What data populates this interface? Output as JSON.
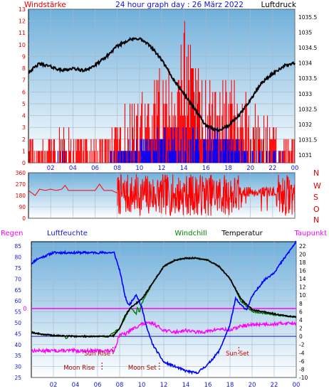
{
  "header": {
    "left_label": "Windstärke",
    "title": "24 hour graph day : 26 März 2022",
    "right_label": "Luftdruck"
  },
  "middle": {
    "compass_labels": [
      "N",
      "W",
      "S",
      "O",
      "N"
    ]
  },
  "bottom_header": {
    "regen": "Regen",
    "luftfeuchte": "Luftfeuchte",
    "windchill": "Windchill",
    "temperatur": "Temperatur",
    "taupunkt": "Taupunkt"
  },
  "annotations": {
    "sun_rise": "Sun Rise",
    "sun_set": "Sun Set",
    "moon_rise": "Moon Rise",
    "moon_set": "Moon Set",
    "regen_zero": "0"
  },
  "colors": {
    "background": "#ffffff",
    "panel_top": "#6fb0dc",
    "panel_bottom": "#ffffff",
    "grid": "#a7b8c8",
    "text_title": "#1515d6",
    "text_red": "#e00000",
    "text_black": "#000000",
    "wind_gust": "#ff0000",
    "wind_avg": "#0000ff",
    "pressure": "#000000",
    "direction": "#ff0000",
    "humidity": "#0000ff",
    "temperature": "#000000",
    "windchill": "#008000",
    "dewpoint": "#ff00ff",
    "rain": "#ff00ff",
    "sun_label": "#d00000",
    "moon_label": "#a00000"
  },
  "chart_data": [
    {
      "id": "wind_pressure",
      "type": "bar+line",
      "x_ticks": [
        "02",
        "04",
        "06",
        "08",
        "10",
        "12",
        "14",
        "16",
        "18",
        "20",
        "22",
        "00"
      ],
      "xlim_hours": [
        0,
        24
      ],
      "y_left": {
        "label": "Windstärke",
        "ticks": [
          "0",
          "1",
          "2",
          "3",
          "4",
          "5",
          "6",
          "7",
          "8",
          "9",
          "10",
          "11",
          "12",
          "13"
        ],
        "ylim": [
          0,
          13
        ]
      },
      "y_right": {
        "label": "Luftdruck",
        "ticks": [
          "1031",
          "1031.5",
          "1032",
          "1032.5",
          "1033",
          "1033.5",
          "1034",
          "1034.5",
          "1035",
          "1035.5"
        ],
        "ylim": [
          1030.75,
          1035.75
        ]
      },
      "series": [
        {
          "name": "Windstärke",
          "gust_profile": {
            "hours": [
              0,
              2,
              3,
              4,
              6,
              7,
              8,
              9,
              10,
              11,
              12,
              13,
              14,
              15,
              16,
              17,
              18,
              19,
              20,
              21,
              22,
              23,
              24
            ],
            "values": [
              2,
              2,
              3,
              2,
              2,
              2,
              4,
              5,
              5,
              6,
              8,
              11,
              12,
              8,
              7,
              6,
              7,
              6,
              5,
              4,
              3,
              2,
              2
            ]
          },
          "avg_profile": {
            "hours": [
              0,
              2,
              3,
              4,
              6,
              7,
              8,
              9,
              10,
              11,
              12,
              13,
              14,
              15,
              16,
              17,
              18,
              19,
              20,
              21,
              22,
              23,
              24
            ],
            "values": [
              0,
              0,
              1,
              0,
              0,
              0,
              1,
              2,
              2,
              2,
              3,
              3,
              4,
              3,
              3,
              3,
              2,
              2,
              1,
              1,
              1,
              0,
              0
            ]
          }
        },
        {
          "name": "Luftdruck",
          "hours": [
            0,
            1,
            2,
            3,
            4,
            5,
            6,
            7,
            8,
            9,
            10,
            11,
            12,
            13,
            14,
            15,
            16,
            17,
            18,
            19,
            20,
            21,
            22,
            23,
            24
          ],
          "values": [
            1033.7,
            1033.98,
            1033.88,
            1033.76,
            1033.82,
            1033.75,
            1033.92,
            1034.2,
            1034.55,
            1034.75,
            1034.8,
            1034.55,
            1034.1,
            1033.5,
            1033.0,
            1032.5,
            1031.95,
            1031.8,
            1031.95,
            1032.3,
            1032.8,
            1033.35,
            1033.65,
            1033.9,
            1034.0
          ]
        }
      ]
    },
    {
      "id": "wind_direction",
      "type": "line",
      "x_ticks": [
        "02",
        "04",
        "06",
        "08",
        "10",
        "12",
        "14",
        "16",
        "18",
        "20",
        "22",
        "00"
      ],
      "xlim_hours": [
        0,
        24
      ],
      "y_left": {
        "ticks": [
          "0",
          "90",
          "180",
          "270",
          "360"
        ],
        "ylim": [
          0,
          360
        ]
      },
      "y_right": {
        "ticks": [
          "N",
          "O",
          "S",
          "W",
          "N"
        ]
      },
      "series": [
        {
          "name": "Windrichtung",
          "hours": [
            0,
            0.6,
            1,
            1.5,
            2,
            2.5,
            3,
            3.3,
            3.6,
            4,
            5,
            6,
            6.4,
            6.8,
            7,
            7.5,
            8,
            24
          ],
          "values": [
            220,
            180,
            230,
            220,
            230,
            220,
            230,
            260,
            220,
            220,
            220,
            220,
            270,
            220,
            220,
            220,
            200,
            200
          ]
        }
      ]
    },
    {
      "id": "temp_humidity",
      "type": "line",
      "x_ticks": [
        "02",
        "04",
        "06",
        "08",
        "10",
        "12",
        "14",
        "16",
        "18",
        "20",
        "22",
        "00"
      ],
      "xlim_hours": [
        0,
        24
      ],
      "y_left": {
        "label": "Luftfeuchte",
        "ticks": [
          "25",
          "30",
          "35",
          "40",
          "45",
          "50",
          "55",
          "60",
          "65",
          "70",
          "75",
          "80",
          "85"
        ],
        "ylim": [
          25,
          87
        ]
      },
      "y_right": {
        "label": "Temperatur",
        "ticks": [
          "-10",
          "-8",
          "-6",
          "-4",
          "-2",
          "0",
          "2",
          "4",
          "6",
          "8",
          "10",
          "12",
          "14",
          "16",
          "18",
          "20",
          "22"
        ],
        "ylim": [
          -10,
          23
        ]
      },
      "series": [
        {
          "name": "Luftfeuchte",
          "hours": [
            0,
            0.5,
            1,
            2,
            3,
            4,
            5,
            6,
            7,
            7.5,
            8,
            8.5,
            8.8,
            9,
            9.5,
            10,
            10.5,
            11,
            12,
            13,
            14,
            15,
            16,
            17,
            18,
            18.5,
            19,
            19.5,
            20,
            21,
            22,
            23,
            24
          ],
          "values": [
            77,
            79,
            80,
            82,
            82,
            82,
            82,
            82,
            82,
            82,
            74,
            62,
            58,
            59,
            63,
            57,
            47,
            40,
            32,
            30,
            28,
            27,
            31,
            37,
            49,
            61,
            58,
            56,
            62,
            69,
            73,
            80,
            87
          ]
        },
        {
          "name": "Temperatur",
          "hours": [
            0,
            0.5,
            1,
            2,
            3,
            4,
            5,
            6,
            7,
            7.5,
            8,
            8.5,
            9,
            10,
            11,
            12,
            13,
            14,
            15,
            16,
            17,
            18,
            19,
            20,
            21,
            22,
            23,
            24
          ],
          "values": [
            1,
            0.7,
            0.5,
            0.2,
            0.1,
            0,
            0,
            0,
            0,
            0.2,
            2,
            5,
            7,
            9,
            13,
            17,
            18.5,
            19,
            19,
            18.5,
            17,
            14,
            9,
            6.5,
            6,
            5.5,
            5,
            4.7
          ]
        },
        {
          "name": "Windchill",
          "hours": [
            0,
            1,
            2,
            3,
            3.2,
            3.4,
            4,
            5,
            6,
            7,
            8,
            9,
            9.5,
            9.6,
            9.8,
            10,
            11,
            12,
            13,
            14,
            15,
            16,
            17,
            18,
            19,
            20,
            21,
            22,
            23,
            24
          ],
          "values": [
            1,
            0.5,
            0.2,
            0.1,
            -0.6,
            0.1,
            0,
            0,
            0,
            0,
            2,
            7,
            5.5,
            7,
            5.8,
            8,
            13,
            17,
            18.5,
            19,
            19,
            18.5,
            17,
            14,
            8.5,
            6,
            5.6,
            5.2,
            5,
            4.6
          ]
        },
        {
          "name": "Taupunkt",
          "hours": [
            0,
            1,
            2,
            3,
            4,
            5,
            6,
            7,
            7.5,
            8,
            8.5,
            9,
            10,
            11,
            12,
            13,
            14,
            15,
            16,
            17,
            18,
            19,
            20,
            21,
            22,
            23,
            24
          ],
          "values": [
            -3.5,
            -3.5,
            -3.5,
            -3.5,
            -3.5,
            -3.5,
            -3.5,
            -3.5,
            -3.5,
            0.5,
            0.5,
            1.5,
            3,
            3.2,
            1.5,
            1,
            1.5,
            1,
            1.2,
            1.8,
            1.5,
            2.5,
            2.8,
            3,
            3,
            3.2,
            3.2
          ]
        },
        {
          "name": "Regen",
          "hours": [
            0,
            24
          ],
          "values": [
            0,
            0
          ]
        }
      ],
      "markers": {
        "sun_rise_hour": 7.4,
        "sun_set_hour": 18.8,
        "moon_rise_hour": 6.4,
        "moon_set_hour": 11.6
      }
    }
  ]
}
